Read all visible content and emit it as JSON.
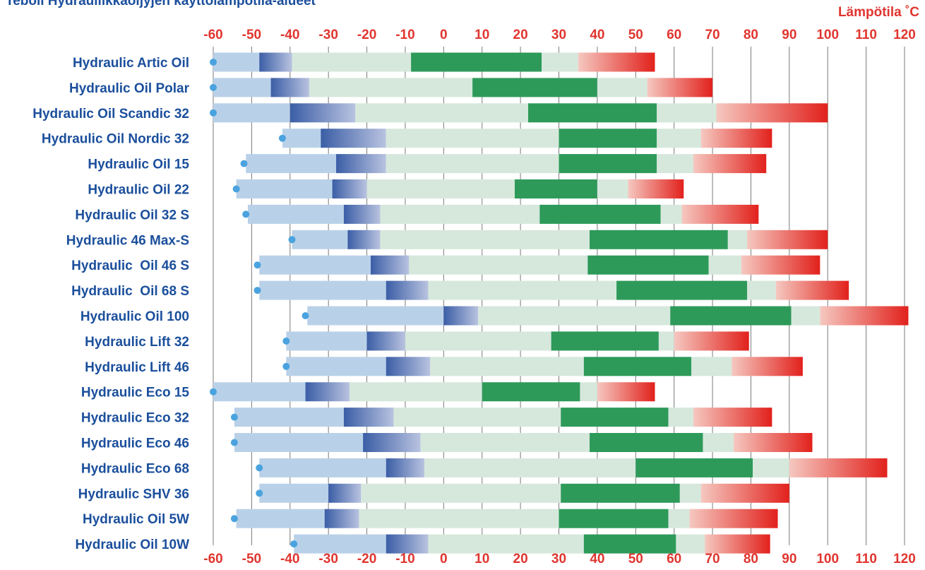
{
  "title": "Teboil Hydrauliikkaöljyjen käyttölämpötila-alueet",
  "unit_label": "Lämpötila ˚C",
  "colors": {
    "label_text": "#1b4f9c",
    "axis_text": "#e0352f",
    "zone1": "#b9d1e8",
    "zone2_start": "#3b5ea6",
    "zone2_end": "#b9c3e0",
    "zone3": "#d6e8dc",
    "zone4": "#2e9a5a",
    "zone5": "#d6e8dc",
    "zone6_start": "#f5c8c0",
    "zone6_end": "#e2211c",
    "marker": "#4aa3df",
    "grid": "#7a7a7a"
  },
  "chart_data": {
    "type": "bar",
    "subtype": "stacked-range",
    "xlim": [
      -60,
      120
    ],
    "xticks": [
      -60,
      -50,
      -40,
      -30,
      -20,
      -10,
      0,
      10,
      20,
      30,
      40,
      50,
      60,
      70,
      80,
      90,
      100,
      110,
      120
    ],
    "xlabel": "Lämpötila ˚C",
    "categories": [
      "Hydraulic Artic Oil",
      "Hydraulic Oil Polar",
      "Hydraulic Oil Scandic 32",
      "Hydraulic Oil Nordic 32",
      "Hydraulic Oil 15",
      "Hydraulic Oil 22",
      "Hydraulic Oil 32 S",
      "Hydraulic 46 Max-S",
      "Hydraulic  Oil 46 S",
      "Hydraulic  Oil 68 S",
      "Hydraulic Oil 100",
      "Hydraulic Lift 32",
      "Hydraulic Lift 46",
      "Hydraulic Eco 15",
      "Hydraulic Eco 32",
      "Hydraulic Eco 46",
      "Hydraulic Eco 68",
      "Hydraulic SHV 36",
      "Hydraulic Oil 5W",
      "Hydraulic Oil 10W"
    ],
    "boundaries": [
      [
        -60,
        -48,
        -39.5,
        -8.5,
        25.5,
        35,
        55
      ],
      [
        -60,
        -45,
        -35,
        7.5,
        40,
        53,
        70
      ],
      [
        -60,
        -40,
        -23,
        22,
        55.5,
        71,
        100
      ],
      [
        -42,
        -32,
        -15,
        30,
        55.5,
        67,
        85.5
      ],
      [
        -51.5,
        -28,
        -15,
        30,
        55.5,
        65,
        84
      ],
      [
        -54,
        -29,
        -20,
        18.5,
        40,
        48,
        62.5
      ],
      [
        -51,
        -26,
        -16.5,
        25,
        56.5,
        62,
        82
      ],
      [
        -39.5,
        -25,
        -16.5,
        38,
        74,
        79,
        100
      ],
      [
        -48,
        -19,
        -9,
        37.5,
        69,
        77.5,
        98
      ],
      [
        -48,
        -15,
        -4,
        45,
        79,
        86.5,
        105.5
      ],
      [
        -35.5,
        0,
        9,
        59,
        90.5,
        98,
        121
      ],
      [
        -41,
        -20,
        -10,
        28,
        56,
        60,
        79.5
      ],
      [
        -41,
        -15,
        -3.5,
        36.5,
        64.5,
        75,
        93.5
      ],
      [
        -60,
        -36,
        -24.5,
        10,
        35.5,
        40,
        55
      ],
      [
        -54.5,
        -26,
        -13,
        30.5,
        58.5,
        65,
        85.5
      ],
      [
        -54.5,
        -21,
        -6,
        38,
        67.5,
        75.5,
        96
      ],
      [
        -48,
        -15,
        -5,
        50,
        80.5,
        90,
        115.5
      ],
      [
        -48,
        -30,
        -21.5,
        30.5,
        61.5,
        67,
        90
      ],
      [
        -54,
        -31,
        -22,
        30,
        58.5,
        64,
        87
      ],
      [
        -39,
        -15,
        -4,
        36.5,
        60.5,
        68,
        85
      ]
    ],
    "markers": [
      -60,
      -60,
      -60,
      -42,
      -52,
      -54,
      -51.5,
      -39.5,
      -48.5,
      -48.5,
      -36,
      -41,
      -41,
      -60,
      -54.5,
      -54.5,
      -48,
      -48,
      -54.5,
      -39
    ]
  }
}
